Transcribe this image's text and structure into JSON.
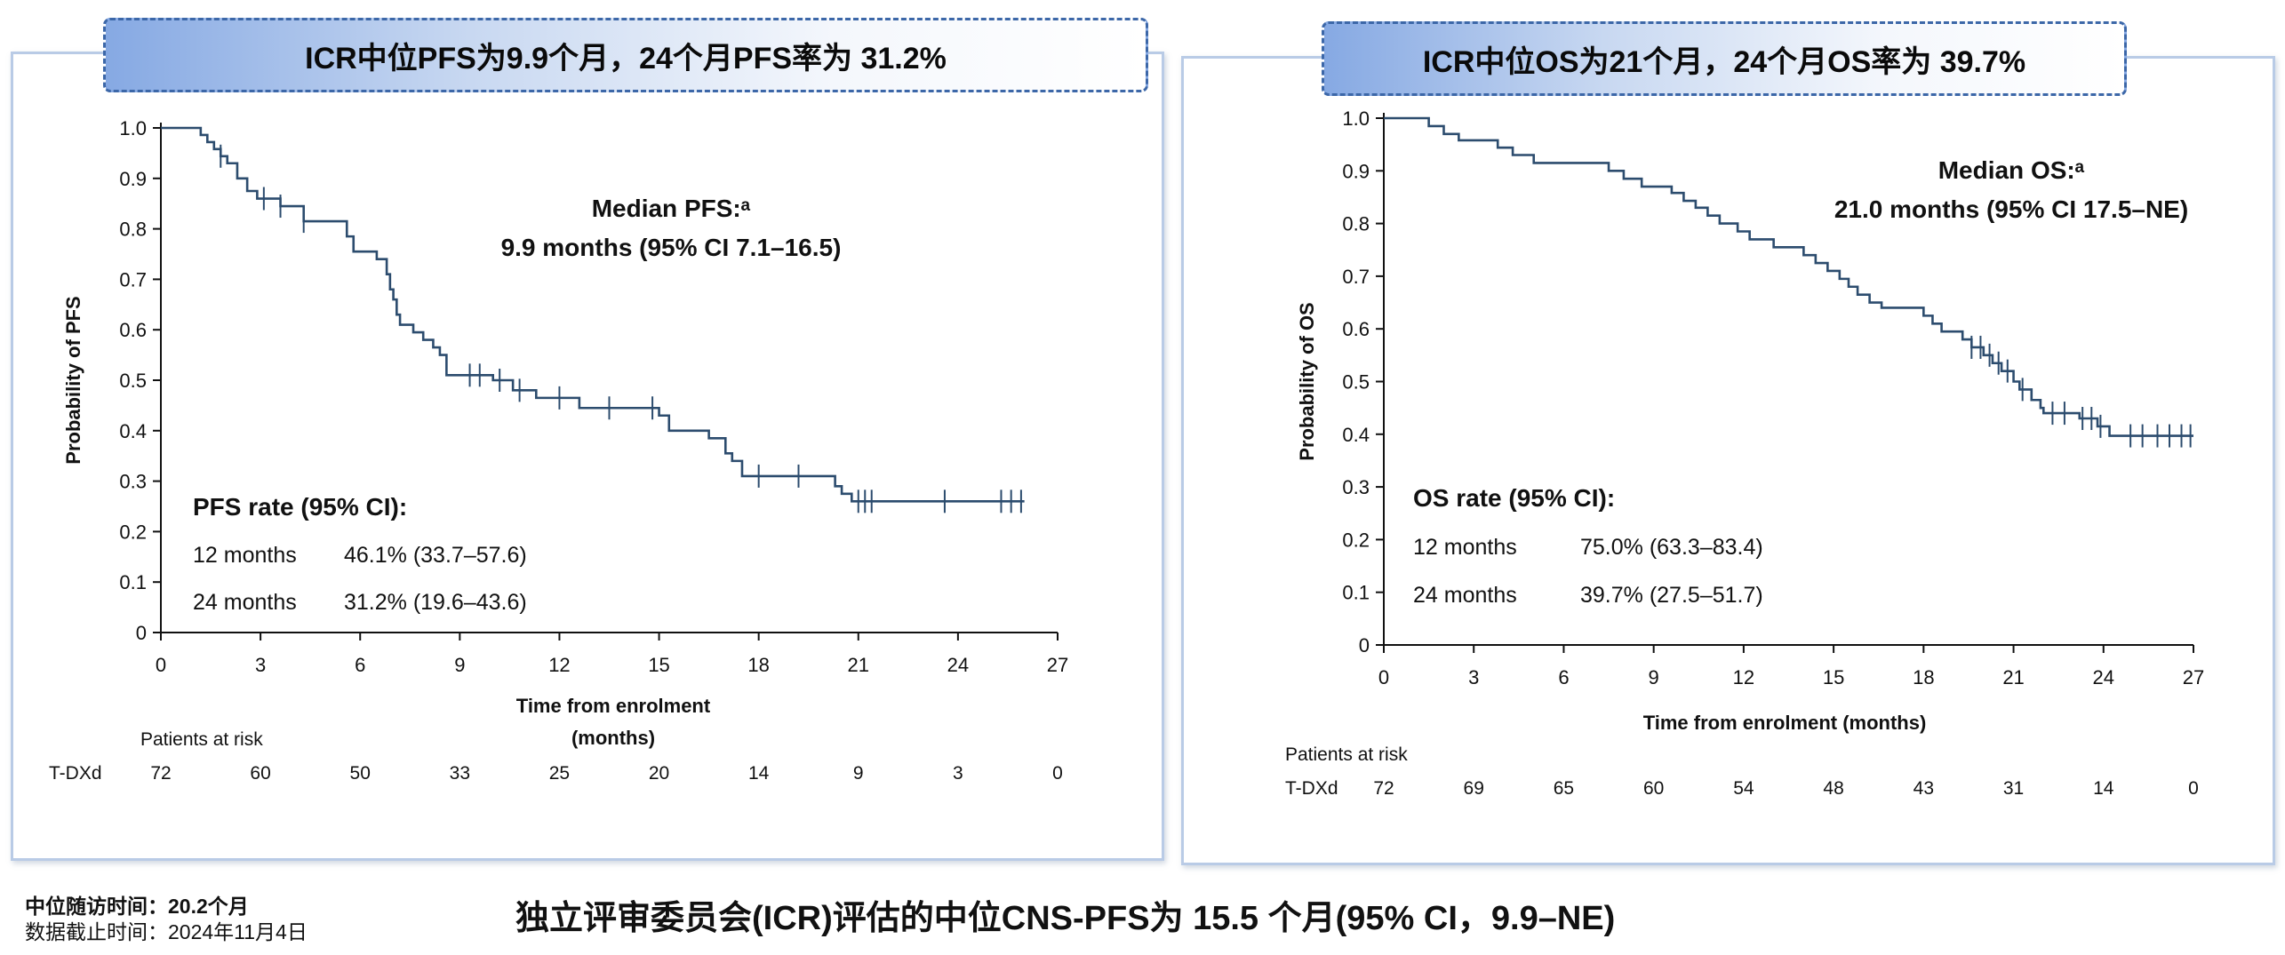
{
  "left_banner": "ICR中位PFS为9.9个月，24个月PFS率为 31.2%",
  "right_banner": "ICR中位OS为21个月，24个月OS率为 39.7%",
  "bottom_title": "独立评审委员会(ICR)评估的中位CNS-PFS为 15.5 个月(95% CI，9.9–NE)",
  "followup": "中位随访时间：20.2个月",
  "cutoff": "数据截止时间：2024年11月4日",
  "colors": {
    "curve": "#2c4c6e",
    "banner_border": "#3c67a8",
    "panel_border": "#b9cbe6"
  },
  "chart_data": [
    {
      "type": "line",
      "step": true,
      "ylabel": "Probability of PFS",
      "xlabel": "Time from enrolment (months)",
      "xlabel_lines": [
        "Time from enrolment",
        "(months)"
      ],
      "xlim": [
        0,
        27
      ],
      "ylim": [
        0,
        1.0
      ],
      "xticks": [
        0,
        3,
        6,
        9,
        12,
        15,
        18,
        21,
        24,
        27
      ],
      "yticks": [
        0,
        0.1,
        0.2,
        0.3,
        0.4,
        0.5,
        0.6,
        0.7,
        0.8,
        0.9,
        1.0
      ],
      "ytick_labels": [
        "0",
        "0.1",
        "0.2",
        "0.3",
        "0.4",
        "0.5",
        "0.6",
        "0.7",
        "0.8",
        "0.9",
        "1.0"
      ],
      "median_title": "Median PFS:ᵃ",
      "median_value": "9.9 months (95% CI 7.1–16.5)",
      "rate_title": "PFS rate (95% CI):",
      "rates": [
        {
          "label": "12 months",
          "value": "46.1% (33.7–57.6)"
        },
        {
          "label": "24 months",
          "value": "31.2% (19.6–43.6)"
        }
      ],
      "risk_title": "Patients at risk",
      "risk_arm": "T-DXd",
      "risk_times": [
        0,
        3,
        6,
        9,
        12,
        15,
        18,
        21,
        24,
        27
      ],
      "risk_counts": [
        "72",
        "60",
        "50",
        "33",
        "25",
        "20",
        "14",
        "9",
        "3",
        "0"
      ],
      "series": [
        {
          "name": "T-DXd",
          "points": [
            [
              0,
              1.0
            ],
            [
              1.2,
              0.986
            ],
            [
              1.4,
              0.972
            ],
            [
              1.6,
              0.958
            ],
            [
              1.8,
              0.944
            ],
            [
              2.0,
              0.93
            ],
            [
              2.3,
              0.9
            ],
            [
              2.6,
              0.875
            ],
            [
              2.9,
              0.86
            ],
            [
              3.6,
              0.845
            ],
            [
              4.3,
              0.815
            ],
            [
              5.6,
              0.785
            ],
            [
              5.8,
              0.755
            ],
            [
              6.5,
              0.74
            ],
            [
              6.8,
              0.71
            ],
            [
              6.9,
              0.68
            ],
            [
              7.0,
              0.66
            ],
            [
              7.1,
              0.63
            ],
            [
              7.2,
              0.61
            ],
            [
              7.6,
              0.595
            ],
            [
              7.9,
              0.58
            ],
            [
              8.2,
              0.565
            ],
            [
              8.4,
              0.55
            ],
            [
              8.6,
              0.51
            ],
            [
              10.0,
              0.5
            ],
            [
              10.6,
              0.48
            ],
            [
              11.3,
              0.465
            ],
            [
              12.6,
              0.445
            ],
            [
              15.0,
              0.43
            ],
            [
              15.3,
              0.4
            ],
            [
              16.5,
              0.385
            ],
            [
              17.0,
              0.355
            ],
            [
              17.2,
              0.34
            ],
            [
              17.5,
              0.31
            ],
            [
              20.3,
              0.29
            ],
            [
              20.5,
              0.275
            ],
            [
              20.8,
              0.26
            ],
            [
              26.0,
              0.26
            ]
          ],
          "censors": [
            [
              1.8,
              0.944
            ],
            [
              3.1,
              0.86
            ],
            [
              3.6,
              0.845
            ],
            [
              4.3,
              0.815
            ],
            [
              9.3,
              0.51
            ],
            [
              9.6,
              0.51
            ],
            [
              10.2,
              0.5
            ],
            [
              10.8,
              0.48
            ],
            [
              12.0,
              0.465
            ],
            [
              13.5,
              0.445
            ],
            [
              14.8,
              0.445
            ],
            [
              18.0,
              0.31
            ],
            [
              19.2,
              0.31
            ],
            [
              21.0,
              0.26
            ],
            [
              21.2,
              0.26
            ],
            [
              21.4,
              0.26
            ],
            [
              23.6,
              0.26
            ],
            [
              25.3,
              0.26
            ],
            [
              25.6,
              0.26
            ],
            [
              25.9,
              0.26
            ]
          ]
        }
      ]
    },
    {
      "type": "line",
      "step": true,
      "ylabel": "Probability of OS",
      "xlabel": "Time from enrolment (months)",
      "xlim": [
        0,
        27
      ],
      "ylim": [
        0,
        1.0
      ],
      "xticks": [
        0,
        3,
        6,
        9,
        12,
        15,
        18,
        21,
        24,
        27
      ],
      "yticks": [
        0,
        0.1,
        0.2,
        0.3,
        0.4,
        0.5,
        0.6,
        0.7,
        0.8,
        0.9,
        1.0
      ],
      "ytick_labels": [
        "0",
        "0.1",
        "0.2",
        "0.3",
        "0.4",
        "0.5",
        "0.6",
        "0.7",
        "0.8",
        "0.9",
        "1.0"
      ],
      "median_title": "Median OS:ᵃ",
      "median_value": "21.0 months (95% CI 17.5–NE)",
      "rate_title": "OS rate (95% CI):",
      "rates": [
        {
          "label": "12 months",
          "value": "75.0% (63.3–83.4)"
        },
        {
          "label": "24 months",
          "value": "39.7% (27.5–51.7)"
        }
      ],
      "risk_title": "Patients at risk",
      "risk_arm": "T-DXd",
      "risk_times": [
        0,
        3,
        6,
        9,
        12,
        15,
        18,
        21,
        24,
        27
      ],
      "risk_counts": [
        "72",
        "69",
        "65",
        "60",
        "54",
        "48",
        "43",
        "31",
        "14",
        "0"
      ],
      "series": [
        {
          "name": "T-DXd",
          "points": [
            [
              0,
              1.0
            ],
            [
              1.5,
              0.985
            ],
            [
              2.0,
              0.97
            ],
            [
              2.5,
              0.958
            ],
            [
              3.8,
              0.944
            ],
            [
              4.3,
              0.93
            ],
            [
              5.0,
              0.915
            ],
            [
              7.5,
              0.9
            ],
            [
              8.0,
              0.885
            ],
            [
              8.6,
              0.87
            ],
            [
              9.6,
              0.858
            ],
            [
              10.0,
              0.843
            ],
            [
              10.4,
              0.83
            ],
            [
              10.8,
              0.815
            ],
            [
              11.2,
              0.8
            ],
            [
              11.8,
              0.785
            ],
            [
              12.2,
              0.77
            ],
            [
              13.0,
              0.755
            ],
            [
              14.0,
              0.74
            ],
            [
              14.4,
              0.725
            ],
            [
              14.8,
              0.71
            ],
            [
              15.2,
              0.695
            ],
            [
              15.5,
              0.68
            ],
            [
              15.8,
              0.665
            ],
            [
              16.2,
              0.65
            ],
            [
              16.6,
              0.64
            ],
            [
              18.0,
              0.625
            ],
            [
              18.3,
              0.61
            ],
            [
              18.6,
              0.595
            ],
            [
              19.3,
              0.58
            ],
            [
              19.6,
              0.565
            ],
            [
              20.0,
              0.55
            ],
            [
              20.3,
              0.535
            ],
            [
              20.6,
              0.52
            ],
            [
              21.0,
              0.5
            ],
            [
              21.2,
              0.485
            ],
            [
              21.6,
              0.465
            ],
            [
              21.9,
              0.45
            ],
            [
              22.0,
              0.44
            ],
            [
              23.2,
              0.43
            ],
            [
              23.8,
              0.415
            ],
            [
              24.2,
              0.397
            ],
            [
              27.0,
              0.397
            ]
          ],
          "censors": [
            [
              19.6,
              0.565
            ],
            [
              19.9,
              0.565
            ],
            [
              20.2,
              0.55
            ],
            [
              20.5,
              0.535
            ],
            [
              20.8,
              0.52
            ],
            [
              21.3,
              0.485
            ],
            [
              22.3,
              0.44
            ],
            [
              22.7,
              0.44
            ],
            [
              23.3,
              0.43
            ],
            [
              23.6,
              0.43
            ],
            [
              23.9,
              0.415
            ],
            [
              24.9,
              0.397
            ],
            [
              25.3,
              0.397
            ],
            [
              25.8,
              0.397
            ],
            [
              26.2,
              0.397
            ],
            [
              26.6,
              0.397
            ],
            [
              26.9,
              0.397
            ]
          ]
        }
      ]
    }
  ]
}
